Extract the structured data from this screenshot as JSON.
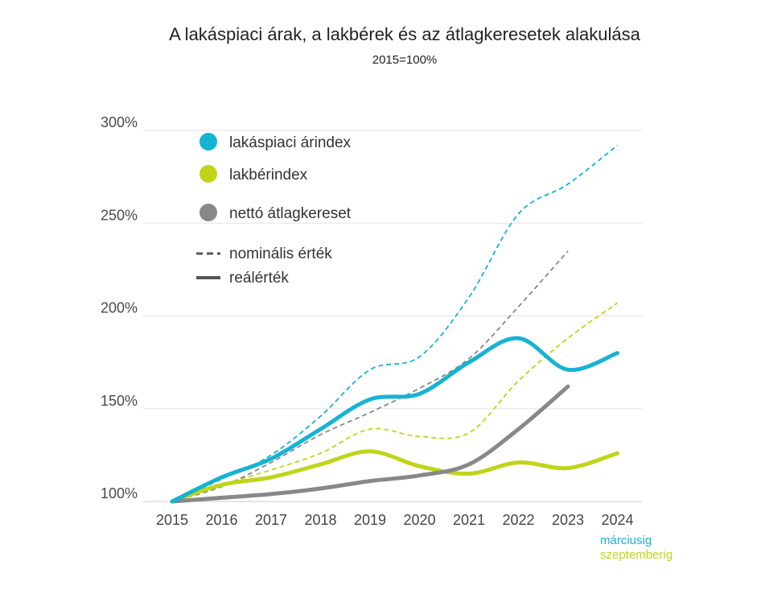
{
  "chart_data": {
    "type": "line",
    "title": "A lakáspiaci árak, a lakbérek és az átlagkeresetek alakulása",
    "subtitle": "2015=100%",
    "xlabel": "",
    "ylabel": "",
    "categories": [
      "2015",
      "2016",
      "2017",
      "2018",
      "2019",
      "2020",
      "2021",
      "2022",
      "2023",
      "2024"
    ],
    "ylim": [
      100,
      300
    ],
    "yticks": [
      100,
      150,
      200,
      250,
      300
    ],
    "ytick_labels": [
      "100%",
      "150%",
      "200%",
      "250%",
      "300%"
    ],
    "grid": true,
    "legend": {
      "position": "top-left",
      "series_entries": [
        {
          "label": "lakáspiaci árindex",
          "color": "#16b3d3"
        },
        {
          "label": "lakbérindex",
          "color": "#c1d41a"
        },
        {
          "label": "nettó átlagkereset",
          "color": "#87888a"
        }
      ],
      "style_entries": [
        {
          "label": "nominális érték",
          "style": "dashed"
        },
        {
          "label": "reálérték",
          "style": "solid"
        }
      ]
    },
    "series": [
      {
        "name": "lakáspiaci árindex",
        "variant": "nominális érték",
        "color": "#16b3d3",
        "style": "dashed",
        "values": [
          100,
          112,
          125,
          146,
          171,
          178,
          210,
          255,
          271,
          292
        ]
      },
      {
        "name": "lakáspiaci árindex",
        "variant": "reálérték",
        "color": "#16b3d3",
        "style": "solid",
        "values": [
          100,
          113,
          123,
          139,
          155,
          158,
          175,
          188,
          171,
          180
        ]
      },
      {
        "name": "lakbérindex",
        "variant": "nominális érték",
        "color": "#c1d41a",
        "style": "dashed",
        "values": [
          100,
          109,
          117,
          126,
          139,
          135,
          137,
          165,
          188,
          207
        ]
      },
      {
        "name": "lakbérindex",
        "variant": "reálérték",
        "color": "#c1d41a",
        "style": "solid",
        "values": [
          100,
          109,
          113,
          120,
          127,
          119,
          115,
          121,
          118,
          126
        ]
      },
      {
        "name": "nettó átlagkereset",
        "variant": "nominális érték",
        "color": "#87888a",
        "style": "dashed",
        "values": [
          100,
          108,
          121,
          136,
          148,
          161,
          177,
          205,
          235,
          null
        ]
      },
      {
        "name": "nettó átlagkereset",
        "variant": "reálérték",
        "color": "#87888a",
        "style": "solid",
        "values": [
          100,
          102,
          104,
          107,
          111,
          114,
          120,
          139,
          162,
          null
        ]
      }
    ],
    "annotations": [
      {
        "text": "márciusig",
        "color": "#16b3d3"
      },
      {
        "text": "szeptemberig",
        "color": "#c1d41a"
      }
    ]
  }
}
